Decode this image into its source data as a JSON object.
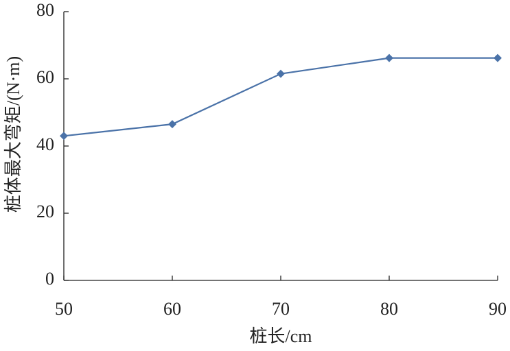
{
  "chart_data": {
    "type": "line",
    "x_label": "桩长/cm",
    "y_label": "桩体最大弯矩/(N·m)",
    "x": [
      50,
      60,
      70,
      80,
      90
    ],
    "series": [
      {
        "name": "桩体最大弯矩",
        "color": "#4a72a8",
        "values": [
          43,
          46.5,
          61.5,
          66.2,
          66.2
        ]
      }
    ],
    "xlim": [
      50,
      90
    ],
    "xticks": [
      50,
      60,
      70,
      80,
      90
    ],
    "ylim": [
      0,
      80
    ],
    "yticks": [
      0,
      20,
      40,
      60,
      80
    ],
    "grid": false,
    "legend": false
  }
}
